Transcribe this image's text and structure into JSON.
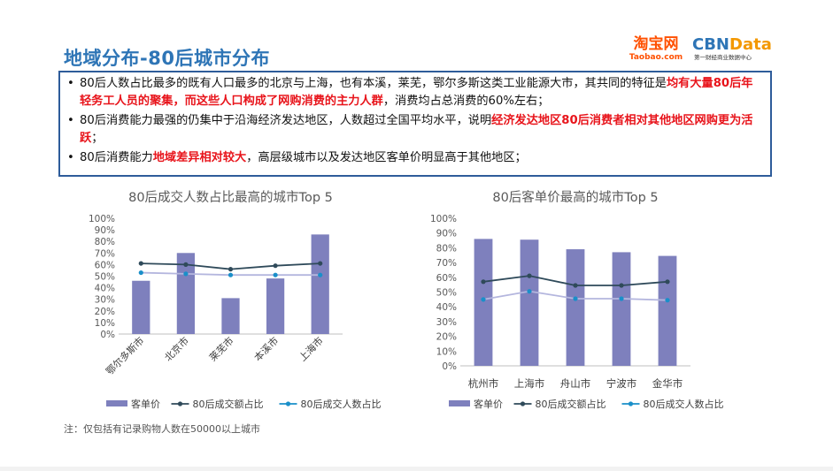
{
  "header": {
    "title": "地域分布-80后城市分布",
    "logo_taobao_main": "淘宝网",
    "logo_taobao_sub": "Taobao.com",
    "logo_cbn_main": "CBN",
    "logo_cbn_data": "Data",
    "logo_cbn_sub": "第一财经商业数据中心"
  },
  "bullets": [
    {
      "segments": [
        {
          "t": "80后人数占比最多的既有人口最多的北京与上海，也有本溪，莱芜，鄂尔多斯这类工业能源大市，其共同的特征是"
        },
        {
          "t": "均有大量80后年轻务工人员的聚集，而这些人口构成了网购消费的主力人群",
          "hl": true
        },
        {
          "t": "，消费均占总消费的60%左右；"
        }
      ]
    },
    {
      "segments": [
        {
          "t": "80后消费能力最强的仍集中于沿海经济发达地区，人数超过全国平均水平，说明"
        },
        {
          "t": "经济发达地区80后消费者相对其他地区网购更为活跃",
          "hl": true
        },
        {
          "t": "；"
        }
      ]
    },
    {
      "segments": [
        {
          "t": "80后消费能力"
        },
        {
          "t": "地域差异相对较大",
          "hl": true
        },
        {
          "t": "，高层级城市以及发达地区客单价明显高于其他地区；"
        }
      ]
    }
  ],
  "note": "注：仅包括有记录购物人数在50000以上城市",
  "colors": {
    "bar": "#7e80bd",
    "line1": "#2f4a5a",
    "line2": "#1a8fc9",
    "title": "#2e75b6",
    "red": "#e8141b"
  },
  "chart_data": [
    {
      "type": "bar",
      "title": "80后成交人数占比最高的城市Top 5",
      "categories": [
        "鄂尔多斯市",
        "北京市",
        "莱芜市",
        "本溪市",
        "上海市"
      ],
      "ylim": [
        0,
        100
      ],
      "yticks": [
        "0%",
        "10%",
        "20%",
        "30%",
        "40%",
        "50%",
        "60%",
        "70%",
        "80%",
        "90%",
        "100%"
      ],
      "series": [
        {
          "name": "客单价",
          "kind": "bar",
          "values": [
            46,
            70,
            31,
            48,
            86
          ]
        },
        {
          "name": "80后成交额占比",
          "kind": "line",
          "values": [
            61,
            60,
            56,
            59,
            61
          ]
        },
        {
          "name": "80后成交人数占比",
          "kind": "line",
          "values": [
            53,
            52,
            51,
            51,
            51
          ]
        }
      ],
      "legend": "bottom",
      "grid": false,
      "x_rotated": true
    },
    {
      "type": "bar",
      "title": "80后客单价最高的城市Top 5",
      "categories": [
        "杭州市",
        "上海市",
        "舟山市",
        "宁波市",
        "金华市"
      ],
      "ylim": [
        0,
        100
      ],
      "yticks": [
        "0%",
        "10%",
        "20%",
        "30%",
        "40%",
        "50%",
        "60%",
        "70%",
        "80%",
        "90%",
        "100%"
      ],
      "series": [
        {
          "name": "客单价",
          "kind": "bar",
          "values": [
            86,
            85.5,
            79,
            77,
            74.5
          ]
        },
        {
          "name": "80后成交额占比",
          "kind": "line",
          "values": [
            57,
            61,
            54.5,
            54.5,
            57
          ]
        },
        {
          "name": "80后成交人数占比",
          "kind": "line",
          "values": [
            45,
            50.5,
            45.5,
            45.5,
            44.5
          ]
        }
      ],
      "legend": "bottom",
      "grid": false,
      "x_rotated": false
    }
  ]
}
